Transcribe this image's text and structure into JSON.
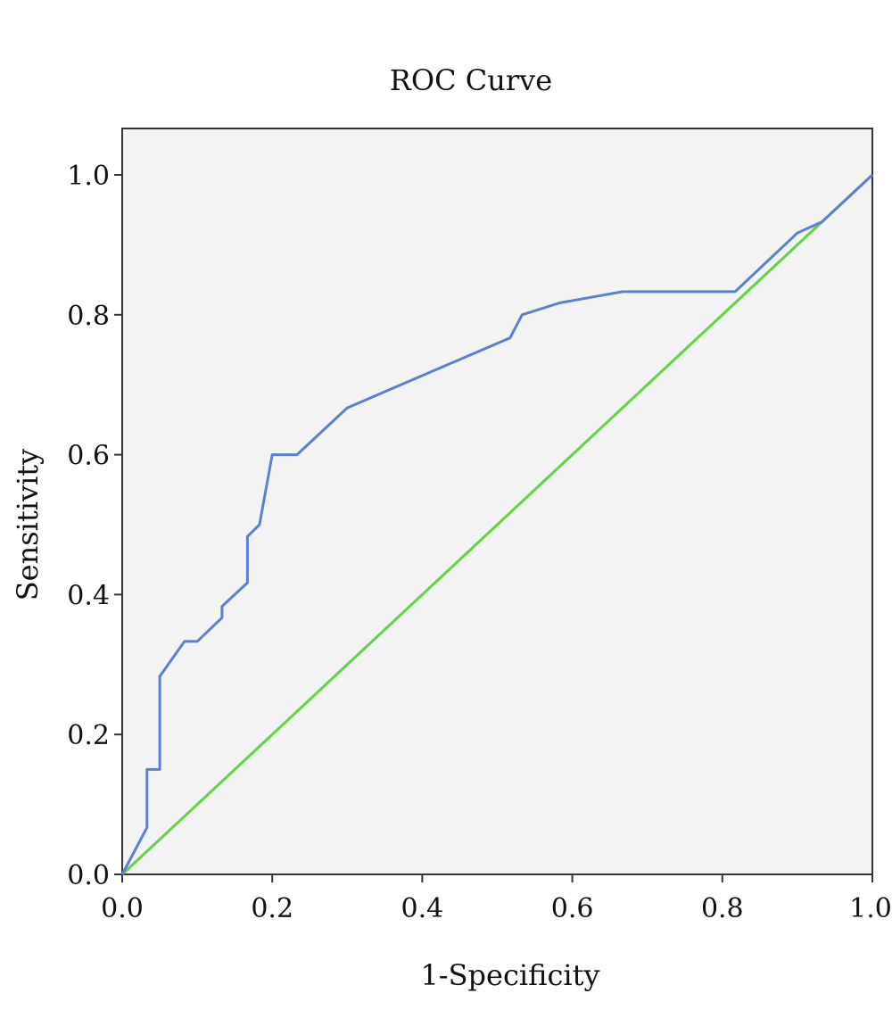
{
  "chart_data": {
    "type": "line",
    "title": "ROC Curve",
    "xlabel": "1-Specificity",
    "ylabel": "Sensitivity",
    "xlim": [
      0.0,
      1.0
    ],
    "ylim": [
      0.0,
      1.0
    ],
    "x_ticks": [
      "0.0",
      "0.2",
      "0.4",
      "0.6",
      "0.8",
      "1.0"
    ],
    "y_ticks": [
      "0.0",
      "0.2",
      "0.4",
      "0.6",
      "0.8",
      "1.0"
    ],
    "grid": false,
    "background_color": "#f2f3f2",
    "series": [
      {
        "color": "#5b7fd6",
        "points": [
          [
            0.0,
            0.0
          ],
          [
            0.033,
            0.067
          ],
          [
            0.033,
            0.15
          ],
          [
            0.05,
            0.15
          ],
          [
            0.05,
            0.283
          ],
          [
            0.083,
            0.333
          ],
          [
            0.1,
            0.333
          ],
          [
            0.133,
            0.367
          ],
          [
            0.133,
            0.383
          ],
          [
            0.15,
            0.4
          ],
          [
            0.167,
            0.417
          ],
          [
            0.167,
            0.483
          ],
          [
            0.183,
            0.5
          ],
          [
            0.2,
            0.6
          ],
          [
            0.233,
            0.6
          ],
          [
            0.3,
            0.667
          ],
          [
            0.517,
            0.767
          ],
          [
            0.533,
            0.8
          ],
          [
            0.583,
            0.817
          ],
          [
            0.667,
            0.833
          ],
          [
            0.817,
            0.833
          ],
          [
            0.9,
            0.917
          ],
          [
            0.933,
            0.933
          ],
          [
            1.0,
            1.0
          ]
        ]
      },
      {
        "color": "#5fd640",
        "points": [
          [
            0.0,
            0.0
          ],
          [
            1.0,
            1.0
          ]
        ]
      }
    ]
  }
}
